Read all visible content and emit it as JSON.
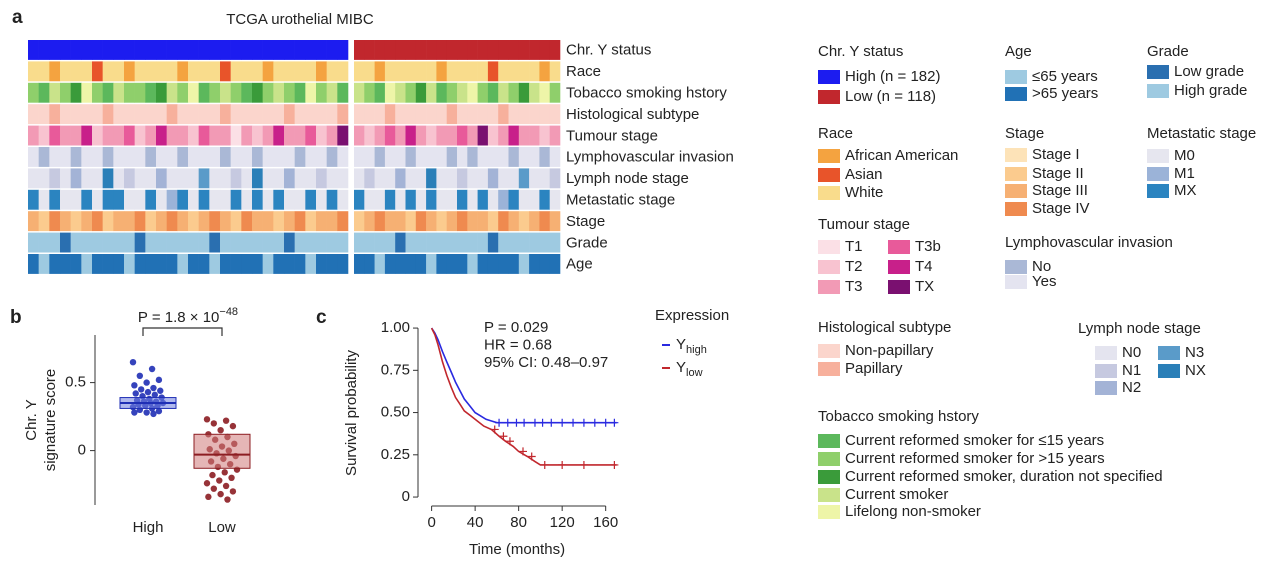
{
  "chart_data": [
    {
      "type": "heatmap",
      "panel": "a",
      "title": "TCGA urothelial MIBC",
      "rows": [
        {
          "label": "Chr. Y status",
          "legend_title": "Chr. Y status",
          "levels": [
            {
              "label": "High (n = 182)",
              "color": "#1c1cf0"
            },
            {
              "label": "Low (n = 118)",
              "color": "#c1272d"
            }
          ],
          "values": [
            0,
            0,
            0,
            0,
            0,
            0,
            0,
            0,
            0,
            0,
            0,
            0,
            0,
            0,
            0,
            0,
            0,
            0,
            0,
            0,
            0,
            0,
            0,
            0,
            0,
            0,
            0,
            0,
            0,
            0,
            1,
            1,
            1,
            1,
            1,
            1,
            1,
            1,
            1,
            1,
            1,
            1,
            1,
            1,
            1,
            1,
            1,
            1,
            1,
            1
          ]
        },
        {
          "label": "Race",
          "legend_title": "Race",
          "levels": [
            {
              "label": "African American",
              "color": "#f4a340"
            },
            {
              "label": "Asian",
              "color": "#e8542a"
            },
            {
              "label": "White",
              "color": "#f9dc8c"
            }
          ],
          "values": [
            2,
            2,
            0,
            2,
            2,
            2,
            1,
            2,
            2,
            0,
            2,
            2,
            2,
            2,
            0,
            2,
            2,
            2,
            1,
            2,
            2,
            2,
            0,
            2,
            2,
            2,
            2,
            0,
            2,
            2,
            2,
            2,
            0,
            2,
            2,
            2,
            2,
            2,
            0,
            2,
            2,
            2,
            2,
            1,
            2,
            2,
            2,
            2,
            0,
            2
          ]
        },
        {
          "label": "Tobacco smoking hstory",
          "legend_title": "Tobacco smoking hstory",
          "levels": [
            {
              "label": "Current reformed smoker for ≤15 years",
              "color": "#5cb85c"
            },
            {
              "label": "Current reformed smoker for >15 years",
              "color": "#8fcf6b"
            },
            {
              "label": "Current reformed smoker, duration not specified",
              "color": "#3a9b3a"
            },
            {
              "label": "Current smoker",
              "color": "#c9e38a"
            },
            {
              "label": "Lifelong non-smoker",
              "color": "#eef5a8"
            }
          ],
          "values": [
            1,
            0,
            3,
            1,
            2,
            4,
            1,
            0,
            3,
            1,
            1,
            0,
            2,
            3,
            1,
            4,
            0,
            1,
            3,
            1,
            0,
            2,
            1,
            3,
            1,
            0,
            4,
            1,
            3,
            0,
            3,
            1,
            0,
            4,
            3,
            1,
            2,
            3,
            0,
            1,
            3,
            4,
            1,
            0,
            3,
            1,
            2,
            3,
            4,
            1
          ]
        },
        {
          "label": "Histological subtype",
          "legend_title": "Histological subtype",
          "levels": [
            {
              "label": "Non-papillary",
              "color": "#fbd5cc"
            },
            {
              "label": "Papillary",
              "color": "#f7b09c"
            }
          ],
          "values": [
            0,
            0,
            1,
            0,
            0,
            0,
            0,
            1,
            0,
            0,
            0,
            0,
            0,
            1,
            0,
            0,
            0,
            0,
            1,
            0,
            0,
            0,
            0,
            0,
            1,
            0,
            0,
            0,
            0,
            1,
            0,
            0,
            0,
            1,
            0,
            0,
            0,
            0,
            0,
            1,
            0,
            0,
            0,
            0,
            1,
            0,
            0,
            0,
            0,
            0
          ]
        },
        {
          "label": "Tumour stage",
          "legend_title": "Tumour stage",
          "levels": [
            {
              "label": "T1",
              "color": "#fbe0e6"
            },
            {
              "label": "T2",
              "color": "#f8c3d0"
            },
            {
              "label": "T3",
              "color": "#f29ab5"
            },
            {
              "label": "T3b",
              "color": "#e85a9a"
            },
            {
              "label": "T4",
              "color": "#c8208a"
            },
            {
              "label": "TX",
              "color": "#7a1070"
            }
          ],
          "values": [
            2,
            1,
            3,
            2,
            2,
            4,
            1,
            2,
            2,
            3,
            1,
            2,
            4,
            2,
            2,
            1,
            3,
            2,
            2,
            0,
            2,
            1,
            2,
            4,
            2,
            2,
            3,
            1,
            2,
            5,
            2,
            1,
            2,
            3,
            2,
            4,
            2,
            1,
            2,
            2,
            3,
            2,
            5,
            1,
            2,
            4,
            2,
            2,
            1,
            2
          ]
        },
        {
          "label": "Lymphovascular invasion",
          "legend_title": "Lymphovascular invasion",
          "levels": [
            {
              "label": "No",
              "color": "#aab8d6"
            },
            {
              "label": "Yes",
              "color": "#e4e4f0"
            }
          ],
          "values": [
            1,
            0,
            1,
            1,
            0,
            1,
            1,
            0,
            1,
            1,
            1,
            0,
            1,
            1,
            0,
            1,
            1,
            1,
            0,
            1,
            1,
            0,
            1,
            1,
            1,
            0,
            1,
            1,
            0,
            1,
            1,
            1,
            0,
            1,
            1,
            0,
            1,
            1,
            1,
            0,
            1,
            0,
            1,
            1,
            1,
            0,
            1,
            1,
            0,
            1
          ]
        },
        {
          "label": "Lymph node stage",
          "legend_title": "Lymph node stage",
          "levels": [
            {
              "label": "N0",
              "color": "#e4e4ef"
            },
            {
              "label": "N1",
              "color": "#c6c9e0"
            },
            {
              "label": "N2",
              "color": "#a3b3d6"
            },
            {
              "label": "N3",
              "color": "#5a9bc9"
            },
            {
              "label": "NX",
              "color": "#2a7fb8"
            }
          ],
          "values": [
            0,
            0,
            1,
            0,
            2,
            0,
            0,
            4,
            0,
            1,
            0,
            0,
            2,
            0,
            0,
            0,
            3,
            0,
            0,
            1,
            0,
            4,
            0,
            0,
            2,
            0,
            0,
            1,
            0,
            0,
            0,
            1,
            0,
            0,
            2,
            0,
            0,
            4,
            0,
            0,
            1,
            0,
            0,
            2,
            0,
            0,
            3,
            0,
            0,
            1
          ]
        },
        {
          "label": "Metastatic stage",
          "legend_title": "Metastatic stage",
          "levels": [
            {
              "label": "M0",
              "color": "#e6e6ef"
            },
            {
              "label": "M1",
              "color": "#9bb3d8"
            },
            {
              "label": "MX",
              "color": "#2b84c0"
            }
          ],
          "values": [
            2,
            0,
            2,
            0,
            0,
            2,
            0,
            2,
            2,
            0,
            0,
            2,
            0,
            1,
            2,
            0,
            2,
            0,
            0,
            2,
            0,
            2,
            0,
            2,
            0,
            0,
            2,
            0,
            2,
            0,
            2,
            0,
            0,
            2,
            0,
            2,
            0,
            2,
            0,
            0,
            2,
            0,
            2,
            0,
            1,
            2,
            0,
            0,
            2,
            0
          ]
        },
        {
          "label": "Stage",
          "legend_title": "Stage",
          "levels": [
            {
              "label": "Stage I",
              "color": "#fde3b8"
            },
            {
              "label": "Stage II",
              "color": "#fbcb8e"
            },
            {
              "label": "Stage III",
              "color": "#f6b073"
            },
            {
              "label": "Stage IV",
              "color": "#ef8a4f"
            }
          ],
          "values": [
            2,
            1,
            3,
            2,
            1,
            2,
            3,
            1,
            2,
            2,
            3,
            1,
            2,
            3,
            2,
            1,
            2,
            3,
            2,
            1,
            3,
            2,
            2,
            1,
            2,
            3,
            1,
            2,
            2,
            3,
            1,
            2,
            3,
            2,
            2,
            1,
            3,
            2,
            1,
            2,
            3,
            2,
            2,
            1,
            3,
            2,
            1,
            2,
            3,
            2
          ]
        },
        {
          "label": "Grade",
          "legend_title": "Grade",
          "levels": [
            {
              "label": "Low grade",
              "color": "#2a6fb0"
            },
            {
              "label": "High grade",
              "color": "#9ecae1"
            }
          ],
          "values": [
            1,
            1,
            1,
            0,
            1,
            1,
            1,
            1,
            1,
            1,
            0,
            1,
            1,
            1,
            1,
            1,
            1,
            0,
            1,
            1,
            1,
            1,
            1,
            1,
            0,
            1,
            1,
            1,
            1,
            1,
            1,
            1,
            1,
            1,
            0,
            1,
            1,
            1,
            1,
            1,
            1,
            1,
            1,
            0,
            1,
            1,
            1,
            1,
            1,
            1
          ]
        },
        {
          "label": "Age",
          "legend_title": "Age",
          "levels": [
            {
              "label": "≤65 years",
              "color": "#9ecae1"
            },
            {
              "label": ">65 years",
              "color": "#2171b5"
            }
          ],
          "values": [
            1,
            0,
            1,
            1,
            1,
            0,
            1,
            1,
            1,
            0,
            1,
            1,
            1,
            1,
            0,
            1,
            1,
            0,
            1,
            1,
            1,
            1,
            0,
            1,
            1,
            1,
            0,
            1,
            1,
            1,
            1,
            1,
            0,
            1,
            1,
            1,
            1,
            0,
            1,
            1,
            1,
            0,
            1,
            1,
            1,
            1,
            0,
            1,
            1,
            1
          ]
        }
      ]
    },
    {
      "type": "strip",
      "panel": "b",
      "p_label": "P = 1.8 × 10",
      "p_exponent": "−48",
      "ylabel": [
        "Chr. Y",
        "signature score"
      ],
      "categories": [
        "High",
        "Low"
      ],
      "ylim": [
        -0.4,
        0.85
      ],
      "yticks": [
        0,
        0.5
      ],
      "colors": [
        "#1f2fb5",
        "#8c1d22"
      ],
      "boxes": [
        {
          "q1": 0.31,
          "median": 0.35,
          "q3": 0.39
        },
        {
          "q1": -0.13,
          "median": -0.03,
          "q3": 0.12
        }
      ],
      "points": [
        [
          0.65,
          0.6,
          0.55,
          0.52,
          0.5,
          0.48,
          0.46,
          0.45,
          0.44,
          0.43,
          0.42,
          0.41,
          0.4,
          0.39,
          0.38,
          0.37,
          0.36,
          0.36,
          0.35,
          0.35,
          0.34,
          0.33,
          0.33,
          0.32,
          0.31,
          0.3,
          0.29,
          0.28,
          0.28,
          0.27
        ],
        [
          0.23,
          0.22,
          0.2,
          0.18,
          0.15,
          0.12,
          0.1,
          0.08,
          0.05,
          0.03,
          0.01,
          0,
          -0.02,
          -0.04,
          -0.06,
          -0.08,
          -0.1,
          -0.12,
          -0.14,
          -0.16,
          -0.18,
          -0.2,
          -0.22,
          -0.24,
          -0.26,
          -0.28,
          -0.3,
          -0.32,
          -0.34,
          -0.36
        ]
      ]
    },
    {
      "type": "line",
      "panel": "c",
      "xlabel": "Time (months)",
      "ylabel": "Survival probability",
      "annotations": [
        "P = 0.029",
        "HR = 0.68",
        "95% CI: 0.48–0.97"
      ],
      "legend_title": "Expression",
      "xlim": [
        -7,
        175
      ],
      "xticks": [
        0,
        40,
        80,
        120,
        160
      ],
      "ylim": [
        -0.05,
        1.03
      ],
      "yticks": [
        {
          "value": 1,
          "label": "1.00"
        },
        0.75,
        {
          "value": 0.5,
          "label": "0.50"
        },
        0.25,
        0
      ],
      "series": [
        {
          "name": "Y",
          "subscript": "high",
          "color": "#2a2ae0",
          "x": [
            0,
            3,
            6,
            10,
            14,
            18,
            22,
            26,
            30,
            35,
            40,
            45,
            50,
            55,
            60,
            70,
            80,
            170
          ],
          "values": [
            1,
            0.97,
            0.93,
            0.86,
            0.8,
            0.74,
            0.68,
            0.63,
            0.58,
            0.54,
            0.5,
            0.48,
            0.46,
            0.45,
            0.44,
            0.44,
            0.44,
            0.44
          ],
          "censored": {
            "x": [
              62,
              70,
              78,
              85,
              95,
              102,
              110,
              120,
              130,
              140,
              150,
              160,
              168
            ],
            "values": [
              0.44,
              0.44,
              0.44,
              0.44,
              0.44,
              0.44,
              0.44,
              0.44,
              0.44,
              0.44,
              0.44,
              0.44,
              0.44
            ]
          }
        },
        {
          "name": "Y",
          "subscript": "low",
          "color": "#c1272d",
          "x": [
            0,
            3,
            6,
            10,
            14,
            18,
            22,
            26,
            30,
            36,
            42,
            48,
            55,
            62,
            68,
            75,
            80,
            88,
            95,
            100,
            170
          ],
          "values": [
            1,
            0.96,
            0.9,
            0.8,
            0.72,
            0.65,
            0.59,
            0.55,
            0.51,
            0.48,
            0.45,
            0.42,
            0.4,
            0.36,
            0.33,
            0.3,
            0.27,
            0.24,
            0.21,
            0.19,
            0.19
          ],
          "censored": {
            "x": [
              58,
              66,
              72,
              84,
              92,
              104,
              120,
              140,
              168
            ],
            "values": [
              0.4,
              0.36,
              0.33,
              0.27,
              0.24,
              0.19,
              0.19,
              0.19,
              0.19
            ]
          }
        }
      ]
    }
  ]
}
